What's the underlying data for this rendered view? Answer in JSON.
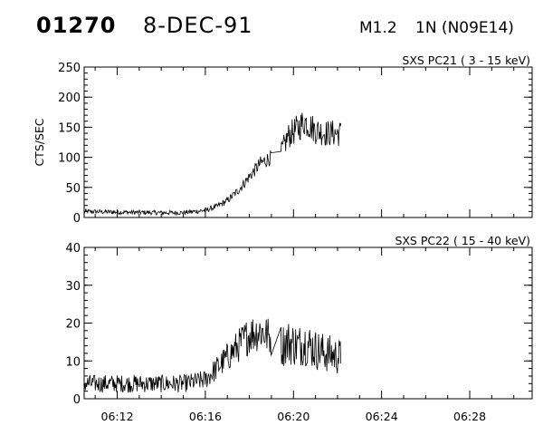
{
  "header": {
    "event_id": "01270",
    "date": "8-DEC-91",
    "flare_class": "M1.2",
    "location": "1N (N09E14)"
  },
  "chart_data": [
    {
      "type": "line",
      "title": "SXS PC21  (  3 - 15 keV)",
      "xlabel": "",
      "ylabel": "CTS/SEC",
      "xlim": [
        "06:10:30",
        "06:30:50"
      ],
      "ylim": [
        0,
        250
      ],
      "yticks": [
        0,
        50,
        100,
        150,
        200,
        250
      ],
      "xticks": [
        "06:12",
        "06:16",
        "06:20",
        "06:24",
        "06:28"
      ],
      "show_x_tick_labels": false,
      "grid": false,
      "data_end": "06:22:10",
      "gap": [
        "06:19:00",
        "06:19:25"
      ],
      "x": [
        "06:10:30",
        "06:12:00",
        "06:14:00",
        "06:15:00",
        "06:16:00",
        "06:16:30",
        "06:17:00",
        "06:17:30",
        "06:18:00",
        "06:18:30",
        "06:19:00",
        "06:19:25",
        "06:19:45",
        "06:20:15",
        "06:20:30",
        "06:21:00",
        "06:21:30",
        "06:22:10"
      ],
      "series": [
        {
          "values": [
            10,
            9,
            8,
            8,
            12,
            18,
            28,
            45,
            68,
            90,
            100,
            105,
            135,
            150,
            160,
            145,
            140,
            140
          ]
        }
      ]
    },
    {
      "type": "line",
      "title": "SXS PC22  ( 15 - 40 keV)",
      "xlabel": "",
      "ylabel": "",
      "xlim": [
        "06:10:30",
        "06:30:50"
      ],
      "ylim": [
        0,
        40
      ],
      "yticks": [
        0,
        10,
        20,
        30,
        40
      ],
      "xticks": [
        "06:12",
        "06:16",
        "06:20",
        "06:24",
        "06:28"
      ],
      "show_x_tick_labels": true,
      "grid": false,
      "data_end": "06:22:10",
      "gap": [
        "06:19:00",
        "06:19:25"
      ],
      "x": [
        "06:10:30",
        "06:12:00",
        "06:14:00",
        "06:15:00",
        "06:16:00",
        "06:16:30",
        "06:17:00",
        "06:17:30",
        "06:18:00",
        "06:18:30",
        "06:19:00",
        "06:19:25",
        "06:19:45",
        "06:20:15",
        "06:20:30",
        "06:21:00",
        "06:21:30",
        "06:22:10"
      ],
      "series": [
        {
          "values": [
            4,
            4,
            4,
            4,
            5,
            8,
            11,
            14,
            17,
            18,
            16,
            14,
            15,
            14,
            15,
            13,
            12,
            11
          ]
        }
      ]
    }
  ]
}
